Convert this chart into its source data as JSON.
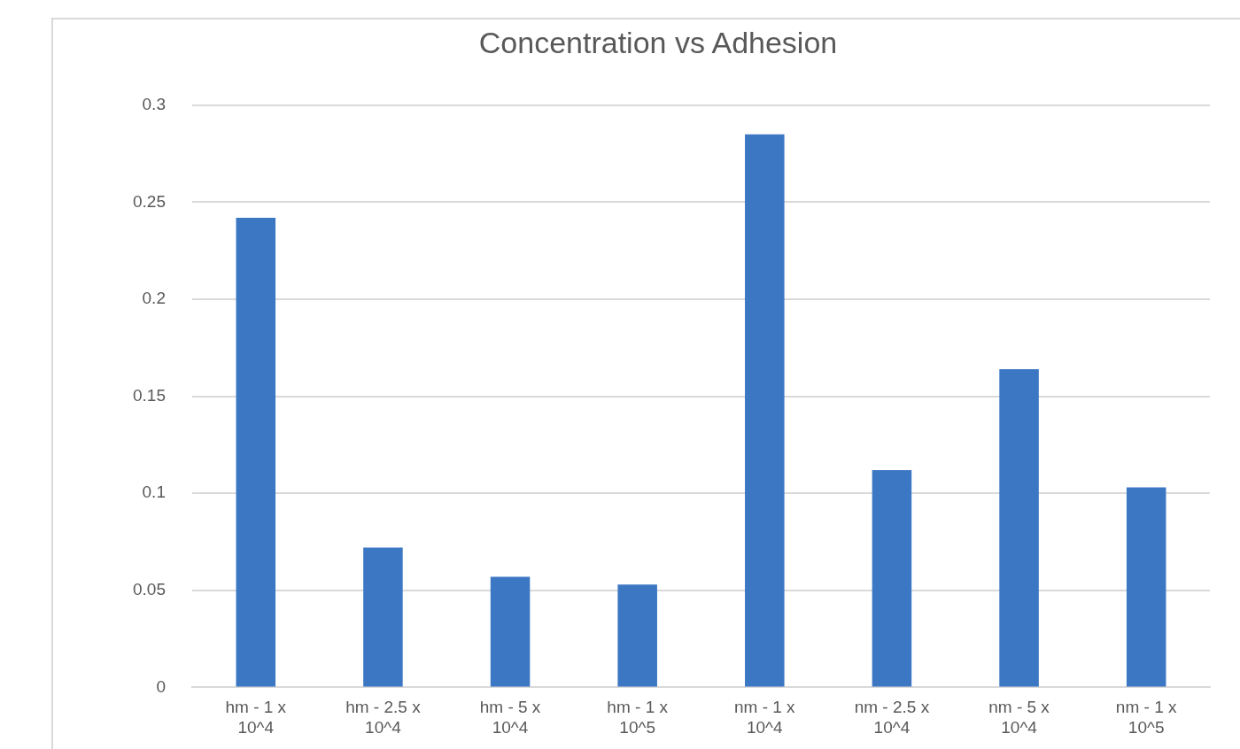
{
  "chart_data": {
    "type": "bar",
    "title": "Concentration vs Adhesion",
    "categories": [
      "hm - 1 x 10^4",
      "hm - 2.5 x 10^4",
      "hm - 5 x 10^4",
      "hm - 1 x 10^5",
      "nm - 1 x 10^4",
      "nm - 2.5 x 10^4",
      "nm - 5 x 10^4",
      "nm - 1 x 10^5"
    ],
    "values": [
      0.242,
      0.072,
      0.057,
      0.053,
      0.285,
      0.112,
      0.164,
      0.103
    ],
    "color": "#3c77c3",
    "ylim": [
      0,
      0.3
    ],
    "yticks": [
      0,
      0.05,
      0.1,
      0.15,
      0.2,
      0.25,
      0.3
    ],
    "grid": "y",
    "legend": false
  }
}
